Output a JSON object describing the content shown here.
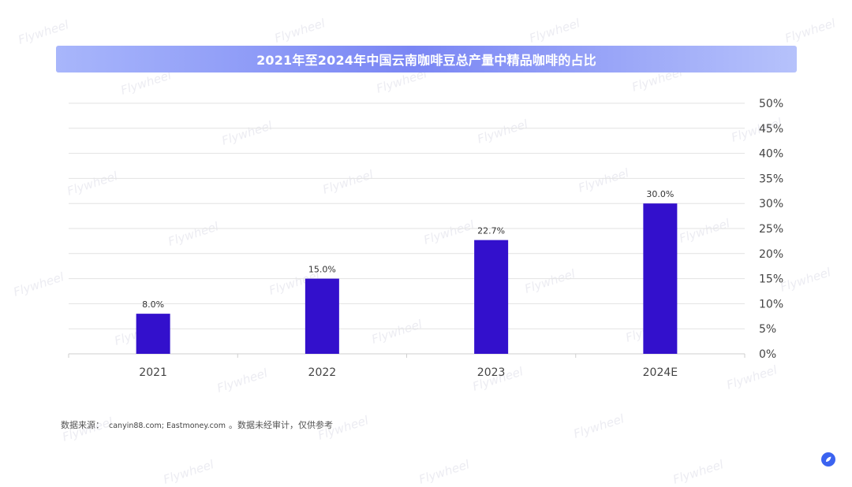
{
  "watermark": "Flywheel",
  "chart_data": {
    "type": "bar",
    "title": "2021年至2024年中国云南咖啡豆总产量中精品咖啡的占比",
    "categories": [
      "2021",
      "2022",
      "2023",
      "2024E"
    ],
    "values": [
      8.0,
      15.0,
      22.7,
      30.0
    ],
    "data_labels": [
      "8.0%",
      "15.0%",
      "22.7%",
      "30.0%"
    ],
    "ylim": [
      0,
      50
    ],
    "y_ticks": [
      0,
      5,
      10,
      15,
      20,
      25,
      30,
      35,
      40,
      45,
      50
    ],
    "y_tick_labels": [
      "0%",
      "5%",
      "10%",
      "15%",
      "20%",
      "25%",
      "30%",
      "35%",
      "40%",
      "45%",
      "50%"
    ],
    "y_axis_side": "right",
    "xlabel": "",
    "ylabel": "",
    "grid": true,
    "bar_color": "#3310cc"
  },
  "footer": {
    "source_label": "数据来源：",
    "source_urls": "canyin88.com; Eastmoney.com",
    "source_note": "。数据未经审计，仅供参考"
  },
  "colors": {
    "title_bar_start": "#a8b6fb",
    "title_bar_mid": "#7a86f4",
    "gridline": "#e2e2e2",
    "axis_text": "#444444",
    "logo": "#3b63f0"
  }
}
